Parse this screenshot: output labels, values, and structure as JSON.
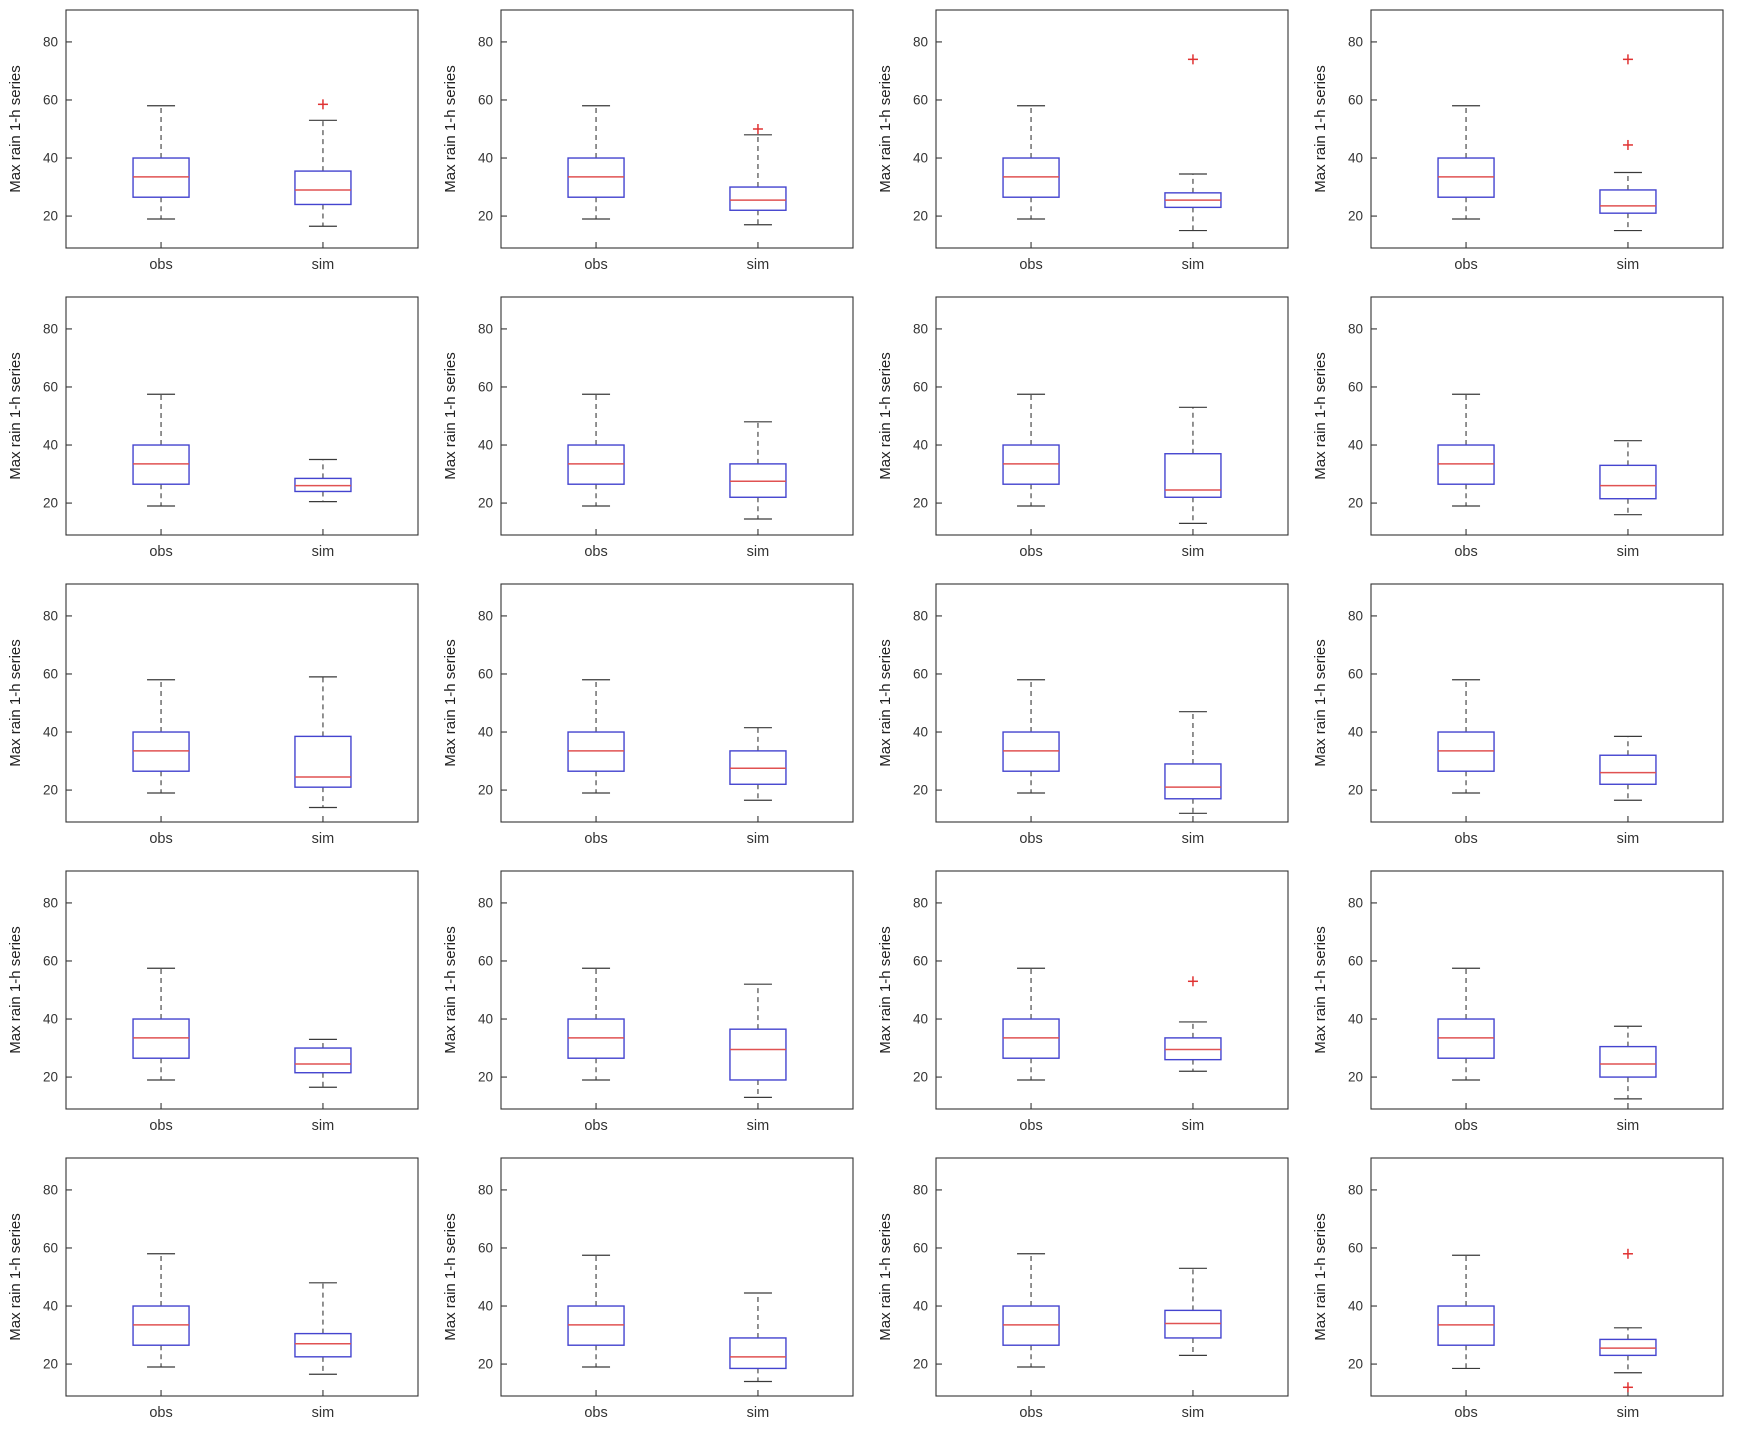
{
  "chart_data": {
    "type": "boxplot",
    "layout": {
      "rows": 5,
      "cols": 4,
      "grid": true
    },
    "title": "",
    "ylabel": "Max rain 1-h series",
    "xlabel": "",
    "categories": [
      "obs",
      "sim"
    ],
    "yticks": [
      20,
      40,
      60,
      80
    ],
    "ylim": [
      9,
      91
    ],
    "colors": {
      "box": "#4444cf",
      "median": "#e05252",
      "whisker": "#3a3a3a",
      "cap": "#3a3a3a",
      "outlier": "#e03232",
      "axis": "#333333",
      "tick_label": "#333333",
      "background": "#ffffff"
    },
    "subplots": [
      {
        "obs": {
          "lo": 19,
          "q1": 26.5,
          "med": 33.5,
          "q3": 40,
          "hi": 58,
          "outliers": []
        },
        "sim": {
          "lo": 16.5,
          "q1": 24,
          "med": 29,
          "q3": 35.5,
          "hi": 53,
          "outliers": [
            58.5
          ]
        }
      },
      {
        "obs": {
          "lo": 19,
          "q1": 26.5,
          "med": 33.5,
          "q3": 40,
          "hi": 58,
          "outliers": []
        },
        "sim": {
          "lo": 17,
          "q1": 22,
          "med": 25.5,
          "q3": 30,
          "hi": 48,
          "outliers": [
            50
          ]
        }
      },
      {
        "obs": {
          "lo": 19,
          "q1": 26.5,
          "med": 33.5,
          "q3": 40,
          "hi": 58,
          "outliers": []
        },
        "sim": {
          "lo": 15,
          "q1": 23,
          "med": 25.5,
          "q3": 28,
          "hi": 34.5,
          "outliers": [
            74
          ]
        }
      },
      {
        "obs": {
          "lo": 19,
          "q1": 26.5,
          "med": 33.5,
          "q3": 40,
          "hi": 58,
          "outliers": []
        },
        "sim": {
          "lo": 15,
          "q1": 21,
          "med": 23.5,
          "q3": 29,
          "hi": 35,
          "outliers": [
            74,
            44.5
          ]
        }
      },
      {
        "obs": {
          "lo": 19,
          "q1": 26.5,
          "med": 33.5,
          "q3": 40,
          "hi": 57.5,
          "outliers": []
        },
        "sim": {
          "lo": 20.5,
          "q1": 24,
          "med": 26,
          "q3": 28.5,
          "hi": 35,
          "outliers": []
        }
      },
      {
        "obs": {
          "lo": 19,
          "q1": 26.5,
          "med": 33.5,
          "q3": 40,
          "hi": 57.5,
          "outliers": []
        },
        "sim": {
          "lo": 14.5,
          "q1": 22,
          "med": 27.5,
          "q3": 33.5,
          "hi": 48,
          "outliers": []
        }
      },
      {
        "obs": {
          "lo": 19,
          "q1": 26.5,
          "med": 33.5,
          "q3": 40,
          "hi": 57.5,
          "outliers": []
        },
        "sim": {
          "lo": 13,
          "q1": 22,
          "med": 24.5,
          "q3": 37,
          "hi": 53,
          "outliers": []
        }
      },
      {
        "obs": {
          "lo": 19,
          "q1": 26.5,
          "med": 33.5,
          "q3": 40,
          "hi": 57.5,
          "outliers": []
        },
        "sim": {
          "lo": 16,
          "q1": 21.5,
          "med": 26,
          "q3": 33,
          "hi": 41.5,
          "outliers": []
        }
      },
      {
        "obs": {
          "lo": 19,
          "q1": 26.5,
          "med": 33.5,
          "q3": 40,
          "hi": 58,
          "outliers": []
        },
        "sim": {
          "lo": 14,
          "q1": 21,
          "med": 24.5,
          "q3": 38.5,
          "hi": 59,
          "outliers": []
        }
      },
      {
        "obs": {
          "lo": 19,
          "q1": 26.5,
          "med": 33.5,
          "q3": 40,
          "hi": 58,
          "outliers": []
        },
        "sim": {
          "lo": 16.5,
          "q1": 22,
          "med": 27.5,
          "q3": 33.5,
          "hi": 41.5,
          "outliers": []
        }
      },
      {
        "obs": {
          "lo": 19,
          "q1": 26.5,
          "med": 33.5,
          "q3": 40,
          "hi": 58,
          "outliers": []
        },
        "sim": {
          "lo": 12,
          "q1": 17,
          "med": 21,
          "q3": 29,
          "hi": 47,
          "outliers": []
        }
      },
      {
        "obs": {
          "lo": 19,
          "q1": 26.5,
          "med": 33.5,
          "q3": 40,
          "hi": 58,
          "outliers": []
        },
        "sim": {
          "lo": 16.5,
          "q1": 22,
          "med": 26,
          "q3": 32,
          "hi": 38.5,
          "outliers": []
        }
      },
      {
        "obs": {
          "lo": 19,
          "q1": 26.5,
          "med": 33.5,
          "q3": 40,
          "hi": 57.5,
          "outliers": []
        },
        "sim": {
          "lo": 16.5,
          "q1": 21.5,
          "med": 24.5,
          "q3": 30,
          "hi": 33,
          "outliers": []
        }
      },
      {
        "obs": {
          "lo": 19,
          "q1": 26.5,
          "med": 33.5,
          "q3": 40,
          "hi": 57.5,
          "outliers": []
        },
        "sim": {
          "lo": 13,
          "q1": 19,
          "med": 29.5,
          "q3": 36.5,
          "hi": 52,
          "outliers": []
        }
      },
      {
        "obs": {
          "lo": 19,
          "q1": 26.5,
          "med": 33.5,
          "q3": 40,
          "hi": 57.5,
          "outliers": []
        },
        "sim": {
          "lo": 22,
          "q1": 26,
          "med": 29.5,
          "q3": 33.5,
          "hi": 39,
          "outliers": [
            53
          ]
        }
      },
      {
        "obs": {
          "lo": 19,
          "q1": 26.5,
          "med": 33.5,
          "q3": 40,
          "hi": 57.5,
          "outliers": []
        },
        "sim": {
          "lo": 12.5,
          "q1": 20,
          "med": 24.5,
          "q3": 30.5,
          "hi": 37.5,
          "outliers": []
        }
      },
      {
        "obs": {
          "lo": 19,
          "q1": 26.5,
          "med": 33.5,
          "q3": 40,
          "hi": 58,
          "outliers": []
        },
        "sim": {
          "lo": 16.5,
          "q1": 22.5,
          "med": 27,
          "q3": 30.5,
          "hi": 48,
          "outliers": []
        }
      },
      {
        "obs": {
          "lo": 19,
          "q1": 26.5,
          "med": 33.5,
          "q3": 40,
          "hi": 57.5,
          "outliers": []
        },
        "sim": {
          "lo": 14,
          "q1": 18.5,
          "med": 22.5,
          "q3": 29,
          "hi": 44.5,
          "outliers": []
        }
      },
      {
        "obs": {
          "lo": 19,
          "q1": 26.5,
          "med": 33.5,
          "q3": 40,
          "hi": 58,
          "outliers": []
        },
        "sim": {
          "lo": 23,
          "q1": 29,
          "med": 34,
          "q3": 38.5,
          "hi": 53,
          "outliers": []
        }
      },
      {
        "obs": {
          "lo": 18.5,
          "q1": 26.5,
          "med": 33.5,
          "q3": 40,
          "hi": 57.5,
          "outliers": []
        },
        "sim": {
          "lo": 17,
          "q1": 23,
          "med": 25.5,
          "q3": 28.5,
          "hi": 32.5,
          "outliers": [
            58,
            12
          ]
        }
      }
    ]
  }
}
